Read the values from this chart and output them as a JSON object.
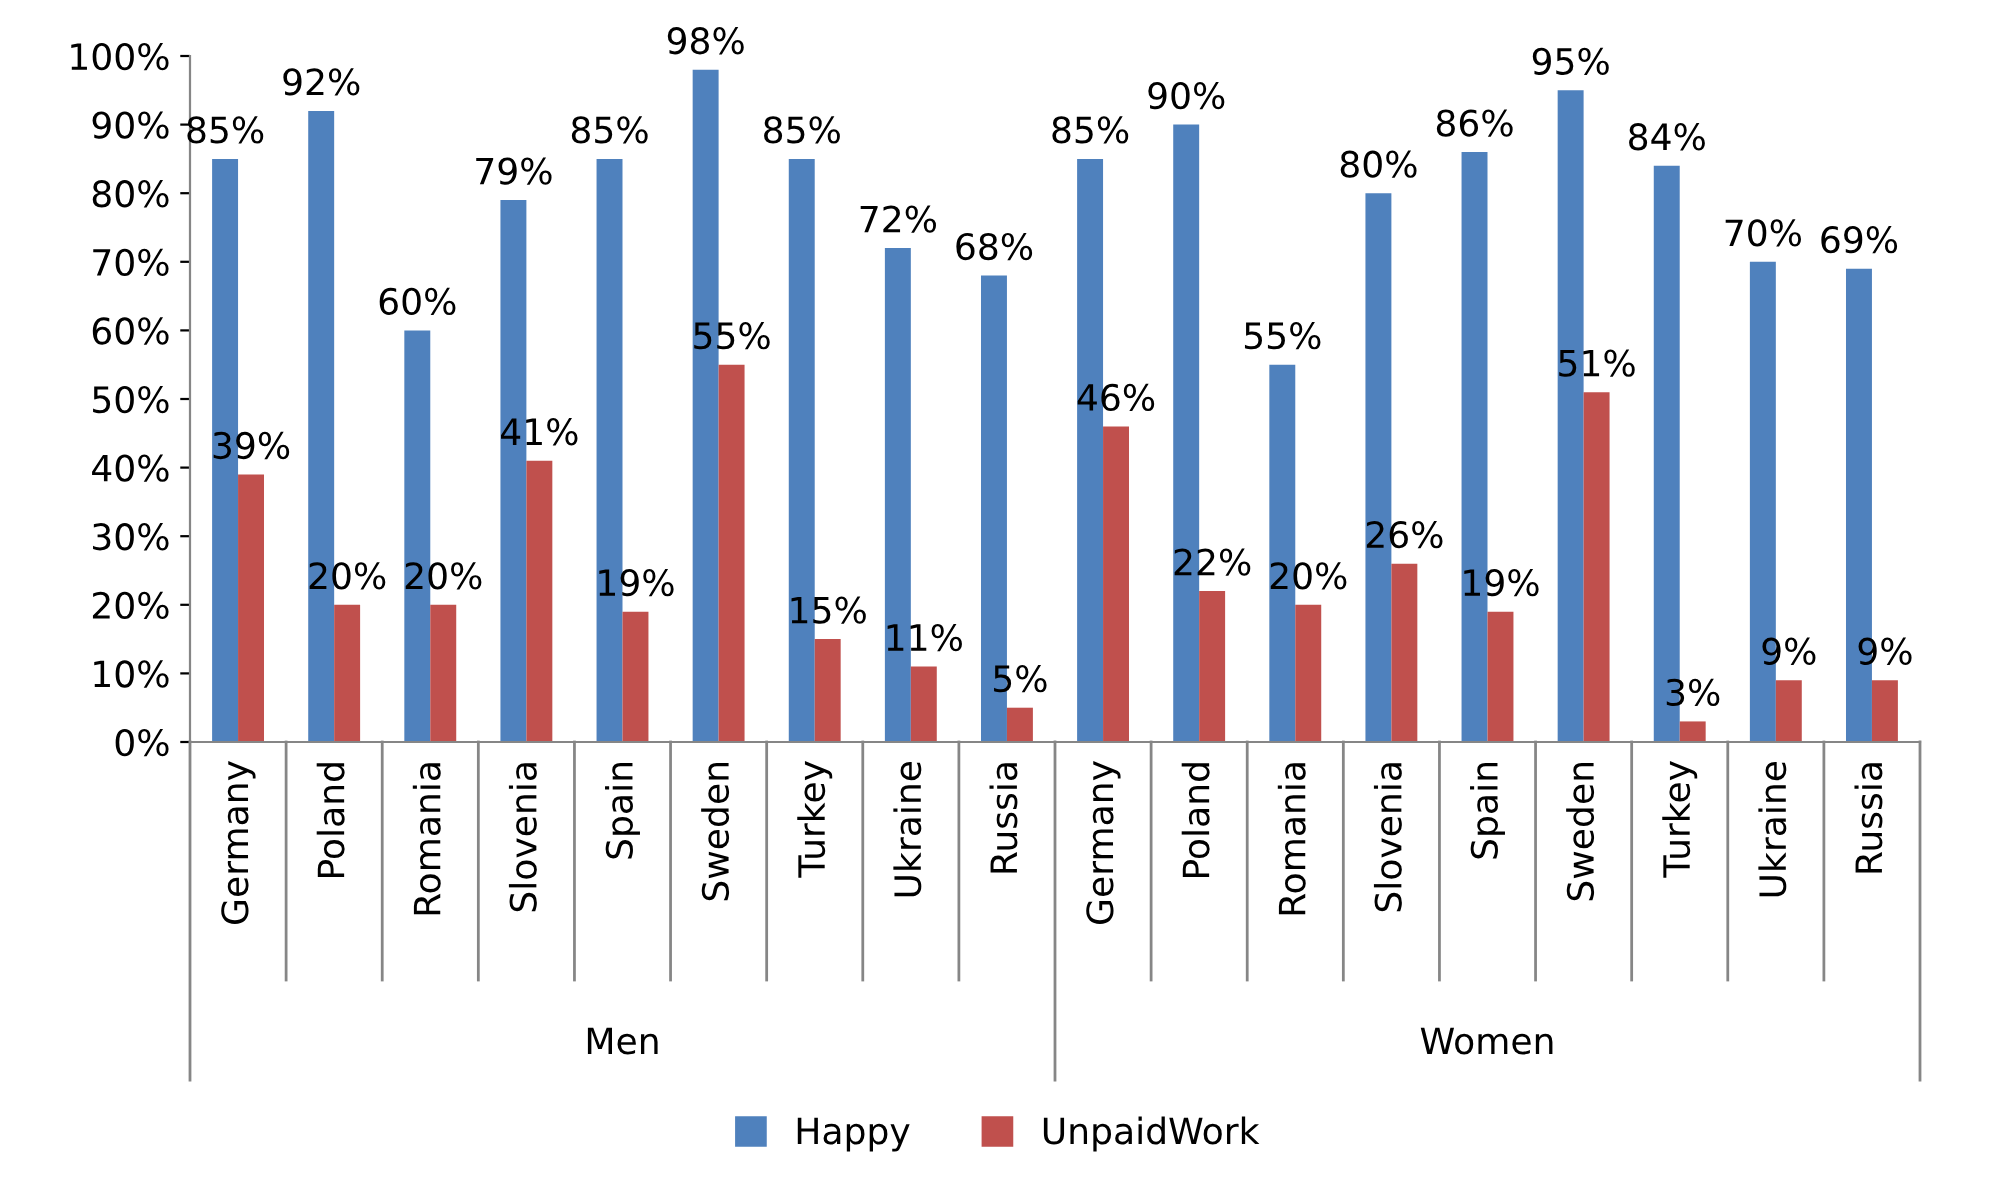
{
  "chart_data": {
    "type": "bar",
    "categories": [
      "Germany",
      "Poland",
      "Romania",
      "Slovenia",
      "Spain",
      "Sweden",
      "Turkey",
      "Ukraine",
      "Russia",
      "Germany",
      "Poland",
      "Romania",
      "Slovenia",
      "Spain",
      "Sweden",
      "Turkey",
      "Ukraine",
      "Russia"
    ],
    "series": [
      {
        "name": "Happy",
        "color": "#4f81bd",
        "values": [
          85,
          92,
          60,
          79,
          85,
          98,
          85,
          72,
          68,
          85,
          90,
          55,
          80,
          86,
          95,
          84,
          70,
          69
        ],
        "value_labels": [
          "85%",
          "92%",
          "60%",
          "79%",
          "85%",
          "98%",
          "85%",
          "72%",
          "68%",
          "85%",
          "90%",
          "55%",
          "80%",
          "86%",
          "95%",
          "84%",
          "70%",
          "69%"
        ]
      },
      {
        "name": "UnpaidWork",
        "color": "#c0504d",
        "values": [
          39,
          20,
          20,
          41,
          19,
          55,
          15,
          11,
          5,
          46,
          22,
          20,
          26,
          19,
          51,
          3,
          9,
          9
        ],
        "value_labels": [
          "39%",
          "20%",
          "20%",
          "41%",
          "19%",
          "55%",
          "15%",
          "11%",
          "5%",
          "46%",
          "22%",
          "20%",
          "26%",
          "19%",
          "51%",
          "3%",
          "9%",
          "9%"
        ]
      }
    ],
    "annotations": [
      "Men",
      "Women"
    ],
    "ylim": [
      0,
      100
    ],
    "yticks": [
      {
        "value": 0,
        "label": "0%"
      },
      {
        "value": 10,
        "label": "10%"
      },
      {
        "value": 20,
        "label": "20%"
      },
      {
        "value": 30,
        "label": "30%"
      },
      {
        "value": 40,
        "label": "40%"
      },
      {
        "value": 50,
        "label": "50%"
      },
      {
        "value": 60,
        "label": "60%"
      },
      {
        "value": 70,
        "label": "70%"
      },
      {
        "value": 80,
        "label": "80%"
      },
      {
        "value": 90,
        "label": "90%"
      },
      {
        "value": 100,
        "label": "100%"
      }
    ],
    "grid": false,
    "legend": "bottom"
  }
}
